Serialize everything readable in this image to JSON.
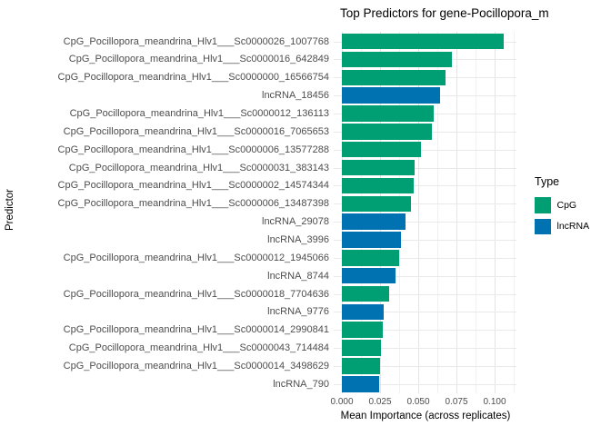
{
  "title": "Top Predictors for gene-Pocillopora_m",
  "axes": {
    "x_title": "Mean Importance (across replicates)",
    "y_title": "Predictor",
    "x_tick_labels": [
      "0.000",
      "0.025",
      "0.050",
      "0.075",
      "0.100"
    ]
  },
  "legend": {
    "title": "Type",
    "entries": [
      {
        "label": "CpG",
        "color": "#009E73"
      },
      {
        "label": "lncRNA",
        "color": "#0072B2"
      }
    ]
  },
  "colors": {
    "cpg_bar": "#009E73",
    "lncrna_bar": "#0072B2",
    "grid_major": "#e4e4e4",
    "grid_minor": "#f1f1f1",
    "axis_text": "#4d4d4d"
  },
  "chart_data": {
    "type": "bar",
    "orientation": "horizontal",
    "title": "Top Predictors for gene-Pocillopora_m",
    "xlabel": "Mean Importance (across replicates)",
    "ylabel": "Predictor",
    "xlim": [
      0,
      0.1113
    ],
    "x_tick_values": [
      0,
      0.025,
      0.05,
      0.075,
      0.1
    ],
    "minor_tick_step": 0.0125,
    "grid": "major+minor vertical, major horizontal",
    "legend_position": "right",
    "bars": [
      {
        "label": "CpG_Pocillopora_meandrina_Hlv1___Sc0000026_1007768",
        "type": "CpG",
        "value": 0.106
      },
      {
        "label": "CpG_Pocillopora_meandrina_Hlv1___Sc0000016_642849",
        "type": "CpG",
        "value": 0.072
      },
      {
        "label": "CpG_Pocillopora_meandrina_Hlv1___Sc0000000_16566754",
        "type": "CpG",
        "value": 0.068
      },
      {
        "label": "lncRNA_18456",
        "type": "lncRNA",
        "value": 0.064
      },
      {
        "label": "CpG_Pocillopora_meandrina_Hlv1___Sc0000012_136113",
        "type": "CpG",
        "value": 0.06
      },
      {
        "label": "CpG_Pocillopora_meandrina_Hlv1___Sc0000016_7065653",
        "type": "CpG",
        "value": 0.059
      },
      {
        "label": "CpG_Pocillopora_meandrina_Hlv1___Sc0000006_13577288",
        "type": "CpG",
        "value": 0.052
      },
      {
        "label": "CpG_Pocillopora_meandrina_Hlv1___Sc0000031_383143",
        "type": "CpG",
        "value": 0.0475
      },
      {
        "label": "CpG_Pocillopora_meandrina_Hlv1___Sc0000002_14574344",
        "type": "CpG",
        "value": 0.047
      },
      {
        "label": "CpG_Pocillopora_meandrina_Hlv1___Sc0000006_13487398",
        "type": "CpG",
        "value": 0.045
      },
      {
        "label": "lncRNA_29078",
        "type": "lncRNA",
        "value": 0.0415
      },
      {
        "label": "lncRNA_3996",
        "type": "lncRNA",
        "value": 0.0385
      },
      {
        "label": "CpG_Pocillopora_meandrina_Hlv1___Sc0000012_1945066",
        "type": "CpG",
        "value": 0.0375
      },
      {
        "label": "lncRNA_8744",
        "type": "lncRNA",
        "value": 0.035
      },
      {
        "label": "CpG_Pocillopora_meandrina_Hlv1___Sc0000018_7704636",
        "type": "CpG",
        "value": 0.031
      },
      {
        "label": "lncRNA_9776",
        "type": "lncRNA",
        "value": 0.0275
      },
      {
        "label": "CpG_Pocillopora_meandrina_Hlv1___Sc0000014_2990841",
        "type": "CpG",
        "value": 0.0265
      },
      {
        "label": "CpG_Pocillopora_meandrina_Hlv1___Sc0000043_714484",
        "type": "CpG",
        "value": 0.0255
      },
      {
        "label": "CpG_Pocillopora_meandrina_Hlv1___Sc0000014_3498629",
        "type": "CpG",
        "value": 0.025
      },
      {
        "label": "lncRNA_790",
        "type": "lncRNA",
        "value": 0.0245
      }
    ]
  }
}
